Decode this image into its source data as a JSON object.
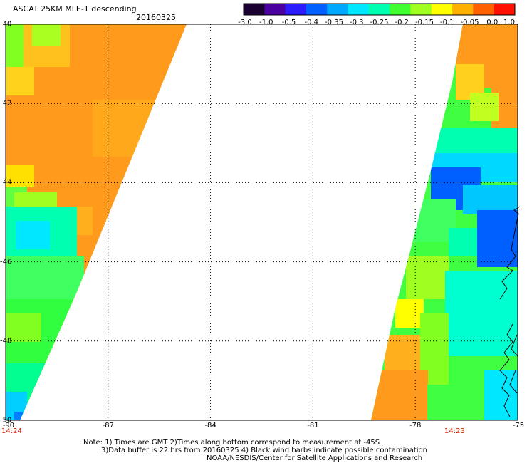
{
  "title": "ASCAT 25KM MLE-1 descending",
  "date": "20160325",
  "colorbar": {
    "ticks": [
      "-3.0",
      "-1.0",
      "-0.5",
      "-0.4",
      "-0.35",
      "-0.3",
      "-0.25",
      "-0.2",
      "-0.15",
      "-0.1",
      "-0.05",
      "0.0",
      "1.0"
    ],
    "colors": [
      "#1a0030",
      "#4b00a0",
      "#2a1cff",
      "#0060ff",
      "#00a8ff",
      "#00e8ff",
      "#00ffb0",
      "#40ff30",
      "#a0ff20",
      "#ffff00",
      "#ffb000",
      "#ff6000",
      "#ff1000"
    ]
  },
  "lat_labels": [
    "-40",
    "-42",
    "-44",
    "-46",
    "-48",
    "-50"
  ],
  "lon_labels": [
    "-90",
    "-87",
    "-84",
    "-81",
    "-78",
    "-75"
  ],
  "times": [
    "14:24",
    "14:23"
  ],
  "notes": [
    "Note: 1) Times are GMT 2)Times along bottom correspond to measurement at -45S",
    "3)Data buffer is 22 hrs from 20160325 4) Black wind barbs indicate possible contamination",
    "NOAA/NESDIS/Center for Satellite Applications and Research"
  ]
}
